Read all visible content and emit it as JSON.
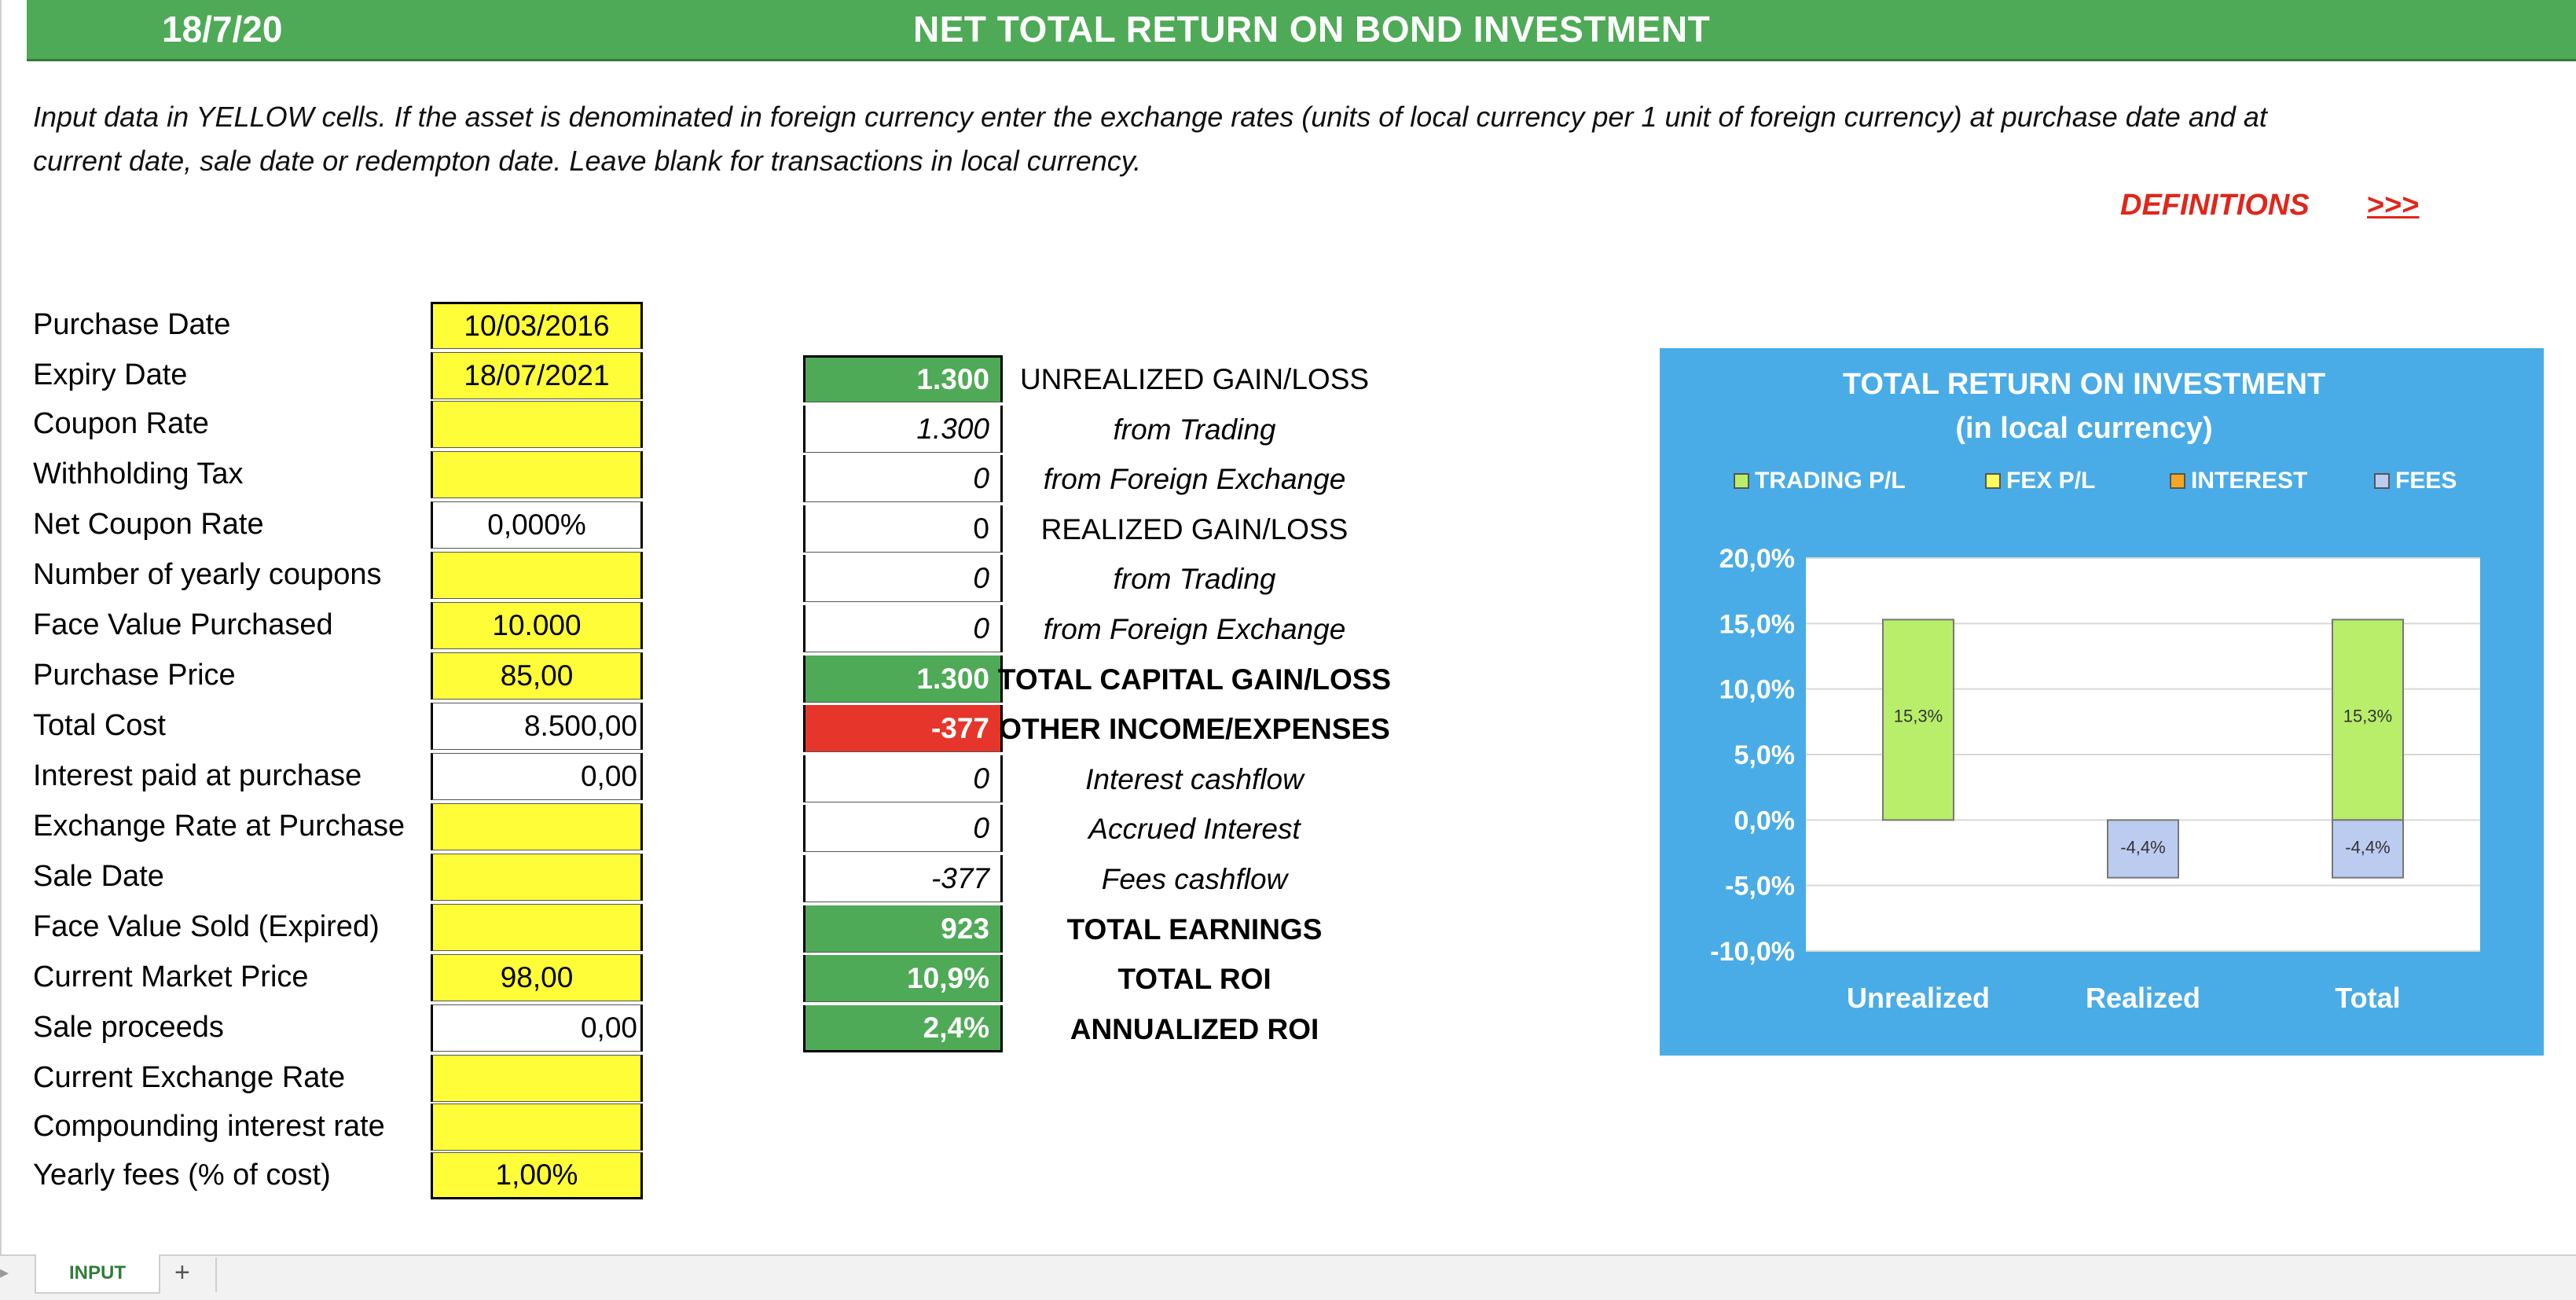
{
  "header": {
    "date": "18/7/20",
    "title": "NET TOTAL RETURN ON BOND INVESTMENT"
  },
  "instructions": {
    "line1": "Input data in YELLOW cells. If the asset is denominated in foreign currency enter the exchange rates (units of local currency per 1 unit of foreign currency) at purchase date and at",
    "line2": "current date, sale date or redempton date. Leave blank for transactions in local currency."
  },
  "links": {
    "definitions": "DEFINITIONS",
    "arrow": ">>>"
  },
  "inputs": [
    {
      "label": "Purchase Date",
      "value": "10/03/2016",
      "fill": "yellow",
      "align": "center"
    },
    {
      "label": "Expiry Date",
      "value": "18/07/2021",
      "fill": "yellow",
      "align": "center"
    },
    {
      "label": "Coupon Rate",
      "value": "",
      "fill": "yellow",
      "align": "center"
    },
    {
      "label": "Withholding Tax",
      "value": "",
      "fill": "yellow",
      "align": "center"
    },
    {
      "label": "Net Coupon Rate",
      "value": "0,000%",
      "fill": "white",
      "align": "center"
    },
    {
      "label": "Number of yearly coupons",
      "value": "",
      "fill": "yellow",
      "align": "center"
    },
    {
      "label": "Face Value Purchased",
      "value": "10.000",
      "fill": "yellow",
      "align": "center"
    },
    {
      "label": "Purchase Price",
      "value": "85,00",
      "fill": "yellow",
      "align": "center"
    },
    {
      "label": "Total Cost",
      "value": "8.500,00",
      "fill": "white",
      "align": "right"
    },
    {
      "label": "Interest paid at purchase",
      "value": "0,00",
      "fill": "white",
      "align": "right"
    },
    {
      "label": "Exchange Rate at Purchase",
      "value": "",
      "fill": "yellow",
      "align": "center"
    },
    {
      "label": "Sale Date",
      "value": "",
      "fill": "yellow",
      "align": "center"
    },
    {
      "label": "Face Value Sold (Expired)",
      "value": "",
      "fill": "yellow",
      "align": "center"
    },
    {
      "label": "Current Market Price",
      "value": "98,00",
      "fill": "yellow",
      "align": "center"
    },
    {
      "label": "Sale proceeds",
      "value": "0,00",
      "fill": "white",
      "align": "right"
    },
    {
      "label": "Current Exchange Rate",
      "value": "",
      "fill": "yellow",
      "align": "center"
    },
    {
      "label": "Compounding interest rate",
      "value": "",
      "fill": "yellow",
      "align": "center"
    },
    {
      "label": "Yearly fees (% of cost)",
      "value": "1,00%",
      "fill": "yellow",
      "align": "center"
    }
  ],
  "results": [
    {
      "value": "1.300",
      "label": "UNREALIZED GAIN/LOSS",
      "fill": "green",
      "style": "normal"
    },
    {
      "value": "1.300",
      "label": "from Trading",
      "fill": "white",
      "style": "italic"
    },
    {
      "value": "0",
      "label": "from Foreign Exchange",
      "fill": "white",
      "style": "italic"
    },
    {
      "value": "0",
      "label": "REALIZED GAIN/LOSS",
      "fill": "white",
      "style": "normal"
    },
    {
      "value": "0",
      "label": "from Trading",
      "fill": "white",
      "style": "italic"
    },
    {
      "value": "0",
      "label": "from Foreign Exchange",
      "fill": "white",
      "style": "italic"
    },
    {
      "value": "1.300",
      "label": "TOTAL CAPITAL GAIN/LOSS",
      "fill": "green",
      "style": "bold"
    },
    {
      "value": "-377",
      "label": "OTHER INCOME/EXPENSES",
      "fill": "red",
      "style": "bold"
    },
    {
      "value": "0",
      "label": "Interest cashflow",
      "fill": "white",
      "style": "italic"
    },
    {
      "value": "0",
      "label": "Accrued Interest",
      "fill": "white",
      "style": "italic"
    },
    {
      "value": "-377",
      "label": "Fees cashflow",
      "fill": "white",
      "style": "italic"
    },
    {
      "value": "923",
      "label": "TOTAL EARNINGS",
      "fill": "green",
      "style": "bold"
    },
    {
      "value": "10,9%",
      "label": "TOTAL ROI",
      "fill": "green",
      "style": "bold"
    },
    {
      "value": "2,4%",
      "label": "ANNUALIZED ROI",
      "fill": "green",
      "style": "bold"
    }
  ],
  "chart_data": {
    "type": "bar",
    "stacked": true,
    "title": "TOTAL RETURN ON INVESTMENT",
    "subtitle": "(in local currency)",
    "categories": [
      "Unrealized",
      "Realized",
      "Total"
    ],
    "series": [
      {
        "name": "TRADING P/L",
        "color": "#b8ee6a",
        "values": [
          15.3,
          0,
          15.3
        ],
        "labels": [
          "15,3%",
          "",
          "15,3%"
        ]
      },
      {
        "name": "FEX P/L",
        "color": "#fdfd5a",
        "values": [
          0,
          0,
          0
        ],
        "labels": [
          "",
          "",
          ""
        ]
      },
      {
        "name": "INTEREST",
        "color": "#f5a623",
        "values": [
          0,
          0,
          0
        ],
        "labels": [
          "",
          "",
          ""
        ]
      },
      {
        "name": "FEES",
        "color": "#bccbf0",
        "values": [
          0,
          -4.4,
          -4.4
        ],
        "labels": [
          "",
          "-4,4%",
          "-4,4%"
        ]
      }
    ],
    "ylim": [
      -10,
      20
    ],
    "yticks": [
      20,
      15,
      10,
      5,
      0,
      -5,
      -10
    ],
    "ytick_labels": [
      "20,0%",
      "15,0%",
      "10,0%",
      "5,0%",
      "0,0%",
      "-5,0%",
      "-10,0%"
    ],
    "legend": "top",
    "grid": true,
    "background": "#4aace6"
  },
  "sheet": {
    "active_tab": "INPUT",
    "add_tab": "+"
  }
}
